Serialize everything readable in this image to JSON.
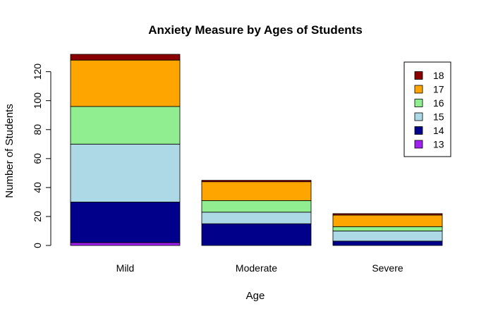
{
  "chart_data": {
    "type": "bar",
    "stacked": true,
    "title": "Anxiety Measure by Ages of Students",
    "xlabel": "Age",
    "ylabel": "Number of Students",
    "categories": [
      "Mild",
      "Moderate",
      "Severe"
    ],
    "ylim": [
      0,
      132
    ],
    "yticks": [
      0,
      20,
      40,
      60,
      80,
      100,
      120
    ],
    "grid": false,
    "legend_position": "top-right",
    "series": [
      {
        "name": "13",
        "color": "#A020F0",
        "values": [
          2,
          0,
          0
        ]
      },
      {
        "name": "14",
        "color": "#00008B",
        "values": [
          28,
          15,
          3
        ]
      },
      {
        "name": "15",
        "color": "#ADD8E6",
        "values": [
          40,
          8,
          7
        ]
      },
      {
        "name": "16",
        "color": "#90EE90",
        "values": [
          26,
          8,
          3
        ]
      },
      {
        "name": "17",
        "color": "#FFA500",
        "values": [
          32,
          13,
          8
        ]
      },
      {
        "name": "18",
        "color": "#8B0000",
        "values": [
          4,
          1,
          1
        ]
      }
    ]
  }
}
